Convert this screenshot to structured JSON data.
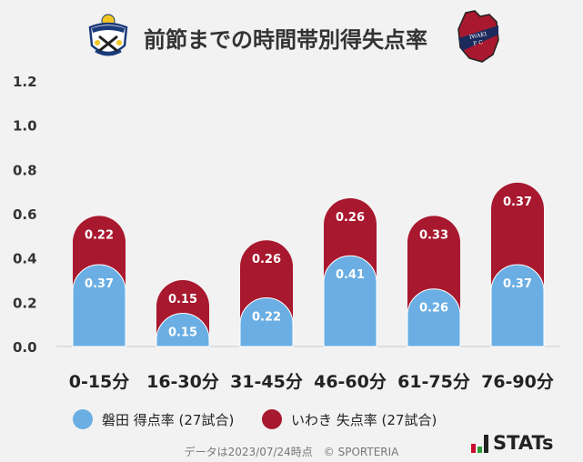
{
  "title": "前節までの時間帯別得失点率",
  "logos": {
    "home": "Jubilo Iwata crest",
    "away": "IWAKI FC"
  },
  "colors": {
    "home": "#6aaee3",
    "away": "#a8182e"
  },
  "chart_data": {
    "type": "bar",
    "stacked": true,
    "categories": [
      "0-15分",
      "16-30分",
      "31-45分",
      "46-60分",
      "61-75分",
      "76-90分"
    ],
    "series": [
      {
        "name": "磐田 得点率 (27試合)",
        "values": [
          0.37,
          0.15,
          0.22,
          0.41,
          0.26,
          0.37
        ],
        "color": "#6aaee3"
      },
      {
        "name": "いわき 失点率 (27試合)",
        "values": [
          0.22,
          0.15,
          0.26,
          0.26,
          0.33,
          0.37
        ],
        "color": "#a8182e"
      }
    ],
    "ylim": [
      0,
      1.2
    ],
    "yticks": [
      "0.0",
      "0.2",
      "0.4",
      "0.6",
      "0.8",
      "1.0",
      "1.2"
    ],
    "grid": false,
    "legend": "bottom"
  },
  "footer": "データは2023/07/24時点　© SPORTERIA",
  "brand": "STATs"
}
